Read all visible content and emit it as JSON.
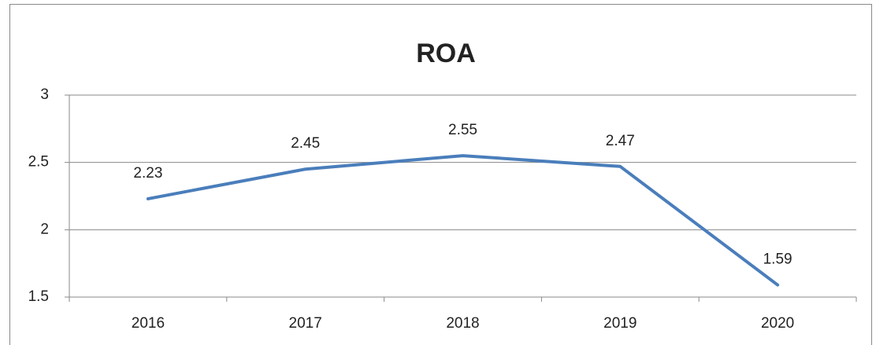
{
  "chart_data": {
    "type": "line",
    "title": "ROA",
    "categories": [
      "2016",
      "2017",
      "2018",
      "2019",
      "2020"
    ],
    "series": [
      {
        "name": "ROA",
        "color": "#4a7ebb",
        "values": [
          2.23,
          2.45,
          2.55,
          2.47,
          1.59
        ]
      }
    ],
    "ylim": [
      1.5,
      3
    ],
    "yticks": [
      1.5,
      2,
      2.5,
      3
    ],
    "grid": true
  }
}
